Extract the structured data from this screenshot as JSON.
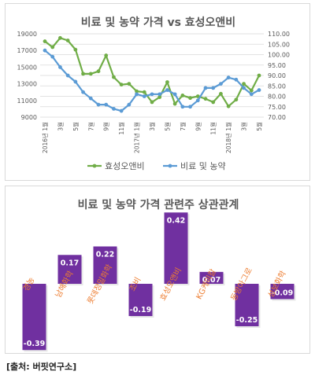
{
  "chart_data": [
    {
      "type": "line",
      "title": "비료 및 농약 가격 vs 효성오앤비",
      "x": [
        "2016년 1월",
        "2월",
        "3월",
        "4월",
        "5월",
        "6월",
        "7월",
        "8월",
        "9월",
        "10월",
        "11월",
        "12월",
        "2017년 1월",
        "2월",
        "3월",
        "4월",
        "5월",
        "6월",
        "7월",
        "8월",
        "9월",
        "10월",
        "11월",
        "12월",
        "2018년 1월",
        "2월",
        "3월",
        "4월",
        "5월"
      ],
      "x_tick_labels": [
        "2016년 1월",
        "3월",
        "5월",
        "7월",
        "9월",
        "11월",
        "2017년 1월",
        "3월",
        "5월",
        "7월",
        "9월",
        "11월",
        "2018년 1월",
        "3월",
        "5월"
      ],
      "y_left": {
        "ticks": [
          "9000",
          "11000",
          "13000",
          "15000",
          "17000",
          "19000"
        ],
        "ylim": [
          9000,
          19000
        ]
      },
      "y_right": {
        "ticks": [
          "70.00",
          "75.00",
          "80.00",
          "85.00",
          "90.00",
          "95.00",
          "100.00",
          "105.00",
          "110.00"
        ],
        "ylim": [
          70,
          110
        ]
      },
      "series": [
        {
          "name": "효성오앤비",
          "axis": "left",
          "color": "#70ad47",
          "values": [
            18100,
            17400,
            18500,
            18200,
            17100,
            14200,
            14200,
            14500,
            16400,
            13800,
            12900,
            13000,
            12100,
            12000,
            10800,
            11400,
            13200,
            10600,
            11600,
            11300,
            11500,
            11200,
            10800,
            11800,
            10300,
            11100,
            13000,
            12200,
            14000
          ]
        },
        {
          "name": "비료 및 농약",
          "axis": "right",
          "color": "#5b9bd5",
          "values": [
            102,
            99,
            94,
            90,
            87,
            82,
            79,
            76,
            76,
            74,
            73,
            76,
            81,
            80,
            81,
            81,
            83,
            81,
            75,
            75,
            78,
            84,
            84,
            86,
            89,
            88,
            84,
            81,
            83
          ]
        }
      ],
      "legend_position": "bottom",
      "grid": true
    },
    {
      "type": "bar",
      "title": "비료 및 농약 가격 관련주 상관관계",
      "categories": [
        "경농",
        "남해화학",
        "롯데정밀화학",
        "조비",
        "효성오앤비",
        "KG케미칼",
        "동방아그로",
        "성보화학"
      ],
      "values": [
        -0.39,
        0.17,
        0.22,
        -0.19,
        0.42,
        0.07,
        -0.25,
        -0.09
      ],
      "value_labels": [
        "-0.39",
        "0.17",
        "0.22",
        "-0.19",
        "0.42",
        "0.07",
        "-0.25",
        "-0.09"
      ],
      "bar_color": "#7030a0",
      "category_label_color": "#ed7d31"
    }
  ],
  "source_text": "[출처: 버핏연구소]",
  "colors": {
    "grid": "#d9d9d9",
    "axis_text": "#595959",
    "title_text": "#595959"
  }
}
